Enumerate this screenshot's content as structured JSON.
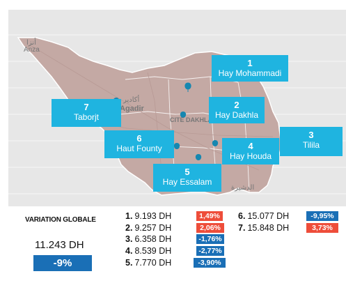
{
  "map": {
    "city_labels": [
      {
        "text": "Agadir"
      },
      {
        "text": "CITE DAKHLA"
      }
    ],
    "small_labels": [
      {
        "text": "Anza"
      },
      {
        "text": "أكادير"
      },
      {
        "text": "أنزا"
      },
      {
        "text": "الدشيرة"
      }
    ],
    "colors": {
      "background": "#e7e7e7",
      "land": "#c4a9a4",
      "callout": "#1fb4e0",
      "pin": "#1687b0",
      "increase": "#ee4d3a",
      "decrease": "#1a6fb6"
    },
    "districts": [
      {
        "num": "1",
        "name": "Hay Mohammadi"
      },
      {
        "num": "2",
        "name": "Hay Dakhla"
      },
      {
        "num": "3",
        "name": "Tilila"
      },
      {
        "num": "4",
        "name": "Hay Houda"
      },
      {
        "num": "5",
        "name": "Hay Essalam"
      },
      {
        "num": "6",
        "name": "Haut Founty"
      },
      {
        "num": "7",
        "name": "Taborjt"
      }
    ]
  },
  "summary": {
    "title": "VARIATION GLOBALE",
    "price": "11.243 DH",
    "variation": "-9%"
  },
  "prices": [
    {
      "rank": "1.",
      "price": "9.193 DH",
      "variation": "1,49%",
      "trend": "up"
    },
    {
      "rank": "2.",
      "price": "9.257 DH",
      "variation": "2,06%",
      "trend": "up"
    },
    {
      "rank": "3.",
      "price": "6.358 DH",
      "variation": "-1,76%",
      "trend": "down"
    },
    {
      "rank": "4.",
      "price": "8.539 DH",
      "variation": "-2,77%",
      "trend": "down"
    },
    {
      "rank": "5.",
      "price": "7.770 DH",
      "variation": "-3,90%",
      "trend": "down"
    },
    {
      "rank": "6.",
      "price": "15.077 DH",
      "variation": "-9,95%",
      "trend": "down"
    },
    {
      "rank": "7.",
      "price": "15.848 DH",
      "variation": "3,73%",
      "trend": "up"
    }
  ]
}
